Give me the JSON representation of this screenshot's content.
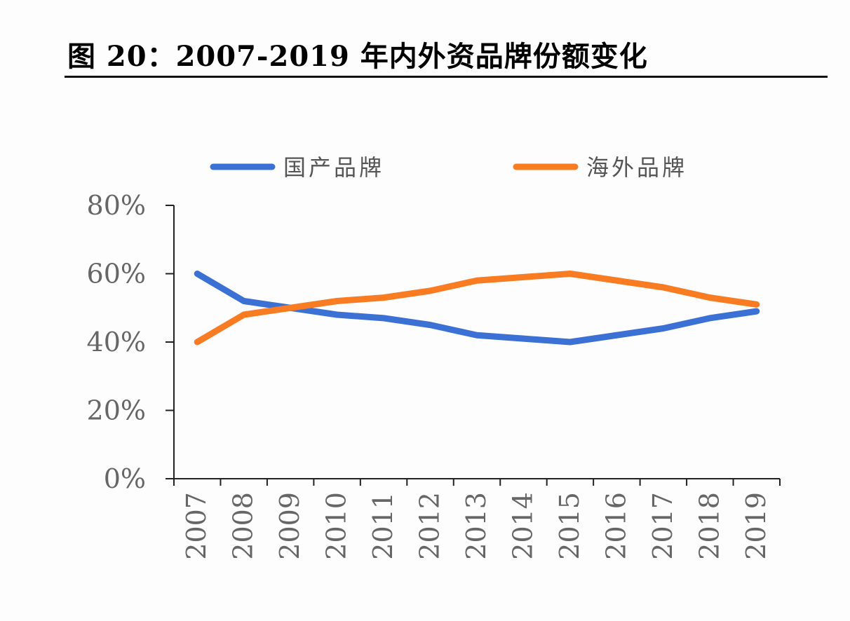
{
  "chart_data": {
    "type": "line",
    "title": "图 20：2007-2019 年内外资品牌份额变化",
    "categories": [
      "2007",
      "2008",
      "2009",
      "2010",
      "2011",
      "2012",
      "2013",
      "2014",
      "2015",
      "2016",
      "2017",
      "2018",
      "2019"
    ],
    "series": [
      {
        "name": "国产品牌",
        "color": "#3b70d4",
        "values": [
          60,
          52,
          50,
          48,
          47,
          45,
          42,
          41,
          40,
          42,
          44,
          47,
          49
        ]
      },
      {
        "name": "海外品牌",
        "color": "#f97b22",
        "values": [
          40,
          48,
          50,
          52,
          53,
          55,
          58,
          59,
          60,
          58,
          56,
          53,
          51
        ]
      }
    ],
    "yticks": [
      "0%",
      "20%",
      "40%",
      "60%",
      "80%"
    ],
    "ylim": [
      0,
      80
    ],
    "grid": false,
    "legend": "top"
  }
}
